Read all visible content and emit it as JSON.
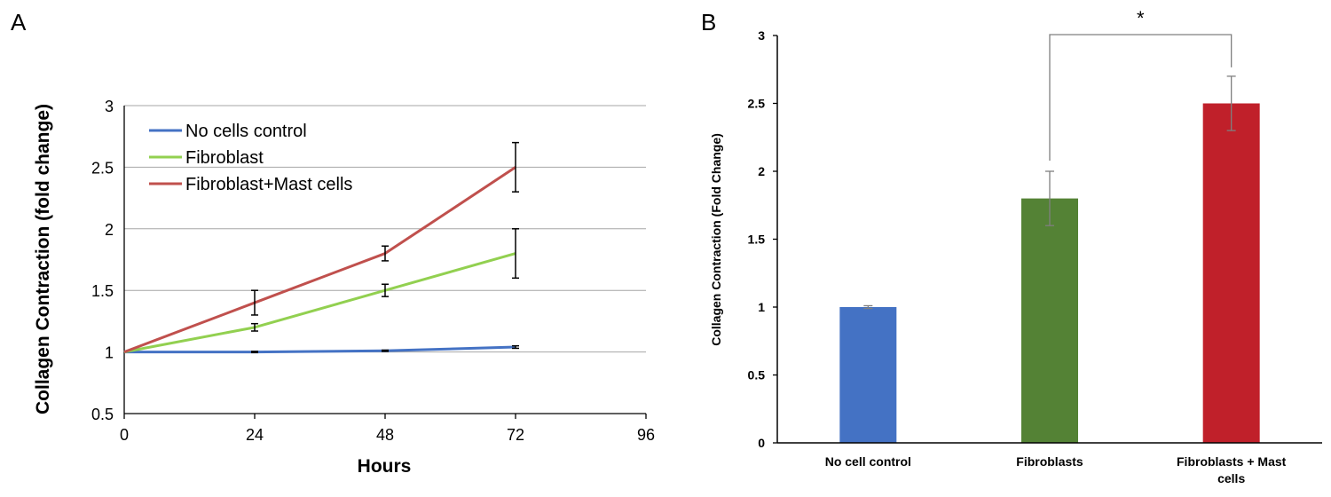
{
  "panels": {
    "a_letter": "A",
    "b_letter": "B"
  },
  "chart_data": [
    {
      "type": "line",
      "title": "",
      "xlabel": "Hours",
      "ylabel": "Collagen Contraction (fold change)",
      "xlim": [
        0,
        96
      ],
      "ylim": [
        0.5,
        3
      ],
      "xticks": [
        0,
        24,
        48,
        72,
        96
      ],
      "yticks": [
        0.5,
        1,
        1.5,
        2,
        2.5,
        3
      ],
      "grid": "horizontal",
      "legend": "top-left",
      "x": [
        0,
        24,
        48,
        72
      ],
      "series": [
        {
          "name": "No cells control",
          "color": "#4472c4",
          "values": [
            1,
            1.0,
            1.01,
            1.04
          ],
          "errors": [
            0,
            0.005,
            0.005,
            0.01
          ]
        },
        {
          "name": "Fibroblast",
          "color": "#92d050",
          "values": [
            1,
            1.2,
            1.5,
            1.8
          ],
          "errors": [
            0,
            0.03,
            0.05,
            0.2
          ]
        },
        {
          "name": "Fibroblast+Mast cells",
          "color": "#c0504d",
          "values": [
            1,
            1.4,
            1.8,
            2.5
          ],
          "errors": [
            0,
            0.1,
            0.06,
            0.2
          ]
        }
      ]
    },
    {
      "type": "bar",
      "title": "",
      "xlabel": "",
      "ylabel": "Collagen Contraction (Fold Change)",
      "ylim": [
        0,
        3
      ],
      "yticks": [
        0,
        0.5,
        1,
        1.5,
        2,
        2.5,
        3
      ],
      "grid": "none",
      "categories": [
        "No cell control",
        "Fibroblasts",
        "Fibroblasts + Mast cells"
      ],
      "category_lines": [
        [
          "No cell control"
        ],
        [
          "Fibroblasts"
        ],
        [
          "Fibroblasts + Mast",
          "cells"
        ]
      ],
      "values": [
        1.0,
        1.8,
        2.5
      ],
      "errors": [
        0.01,
        0.2,
        0.2
      ],
      "colors": [
        "#4472c4",
        "#548235",
        "#c0202a"
      ],
      "significance": {
        "from": 1,
        "to": 2,
        "label": "*"
      }
    }
  ]
}
